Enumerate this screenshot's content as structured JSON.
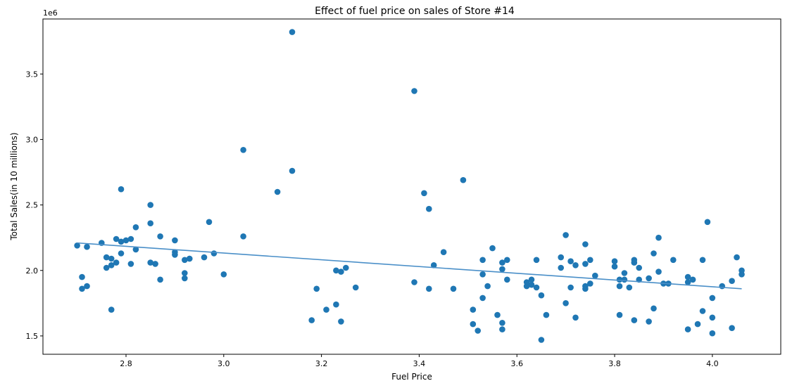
{
  "chart_data": {
    "type": "scatter",
    "title": "Effect of fuel price on sales of Store #14",
    "xlabel": "Fuel Price",
    "ylabel": "Total Sales(in 10 millions)",
    "y_offset_text": "1e6",
    "xlim": [
      2.63,
      4.14
    ],
    "ylim": [
      1.36,
      3.92
    ],
    "x_ticks": [
      {
        "value": 2.8,
        "label": "2.8"
      },
      {
        "value": 3.0,
        "label": "3.0"
      },
      {
        "value": 3.2,
        "label": "3.2"
      },
      {
        "value": 3.4,
        "label": "3.4"
      },
      {
        "value": 3.6,
        "label": "3.6"
      },
      {
        "value": 3.8,
        "label": "3.8"
      },
      {
        "value": 4.0,
        "label": "4.0"
      }
    ],
    "y_ticks": [
      {
        "value": 1.5,
        "label": "1.5"
      },
      {
        "value": 2.0,
        "label": "2.0"
      },
      {
        "value": 2.5,
        "label": "2.5"
      },
      {
        "value": 3.0,
        "label": "3.0"
      },
      {
        "value": 3.5,
        "label": "3.5"
      }
    ],
    "grid": false,
    "colors": {
      "points": "#1f77b4",
      "trend": "#4a8fc8"
    },
    "trend_line": {
      "x": [
        2.7,
        4.06
      ],
      "y": [
        2.21,
        1.86
      ]
    },
    "points": [
      {
        "x": 2.7,
        "y": 2.19
      },
      {
        "x": 2.71,
        "y": 1.95
      },
      {
        "x": 2.71,
        "y": 1.86
      },
      {
        "x": 2.72,
        "y": 1.88
      },
      {
        "x": 2.72,
        "y": 2.18
      },
      {
        "x": 2.75,
        "y": 2.21
      },
      {
        "x": 2.76,
        "y": 2.1
      },
      {
        "x": 2.76,
        "y": 2.02
      },
      {
        "x": 2.77,
        "y": 2.09
      },
      {
        "x": 2.77,
        "y": 1.7
      },
      {
        "x": 2.77,
        "y": 2.04
      },
      {
        "x": 2.78,
        "y": 2.24
      },
      {
        "x": 2.78,
        "y": 2.06
      },
      {
        "x": 2.79,
        "y": 2.22
      },
      {
        "x": 2.79,
        "y": 2.13
      },
      {
        "x": 2.79,
        "y": 2.62
      },
      {
        "x": 2.8,
        "y": 2.23
      },
      {
        "x": 2.81,
        "y": 2.05
      },
      {
        "x": 2.81,
        "y": 2.24
      },
      {
        "x": 2.82,
        "y": 2.33
      },
      {
        "x": 2.82,
        "y": 2.16
      },
      {
        "x": 2.85,
        "y": 2.06
      },
      {
        "x": 2.85,
        "y": 2.36
      },
      {
        "x": 2.85,
        "y": 2.5
      },
      {
        "x": 2.86,
        "y": 2.05
      },
      {
        "x": 2.87,
        "y": 1.93
      },
      {
        "x": 2.87,
        "y": 2.26
      },
      {
        "x": 2.9,
        "y": 2.23
      },
      {
        "x": 2.9,
        "y": 2.14
      },
      {
        "x": 2.9,
        "y": 2.12
      },
      {
        "x": 2.92,
        "y": 2.08
      },
      {
        "x": 2.92,
        "y": 1.94
      },
      {
        "x": 2.92,
        "y": 1.98
      },
      {
        "x": 2.93,
        "y": 2.09
      },
      {
        "x": 2.93,
        "y": 2.09
      },
      {
        "x": 2.96,
        "y": 2.1
      },
      {
        "x": 2.97,
        "y": 2.37
      },
      {
        "x": 2.98,
        "y": 2.13
      },
      {
        "x": 3.0,
        "y": 1.97
      },
      {
        "x": 3.04,
        "y": 2.92
      },
      {
        "x": 3.04,
        "y": 2.26
      },
      {
        "x": 3.11,
        "y": 2.6
      },
      {
        "x": 3.14,
        "y": 3.82
      },
      {
        "x": 3.14,
        "y": 2.76
      },
      {
        "x": 3.18,
        "y": 1.62
      },
      {
        "x": 3.19,
        "y": 1.86
      },
      {
        "x": 3.21,
        "y": 1.7
      },
      {
        "x": 3.23,
        "y": 1.74
      },
      {
        "x": 3.23,
        "y": 2.0
      },
      {
        "x": 3.24,
        "y": 1.61
      },
      {
        "x": 3.24,
        "y": 1.99
      },
      {
        "x": 3.25,
        "y": 2.02
      },
      {
        "x": 3.27,
        "y": 1.87
      },
      {
        "x": 3.39,
        "y": 3.37
      },
      {
        "x": 3.39,
        "y": 1.91
      },
      {
        "x": 3.41,
        "y": 2.59
      },
      {
        "x": 3.42,
        "y": 2.47
      },
      {
        "x": 3.42,
        "y": 1.86
      },
      {
        "x": 3.43,
        "y": 2.04
      },
      {
        "x": 3.45,
        "y": 2.14
      },
      {
        "x": 3.47,
        "y": 1.86
      },
      {
        "x": 3.49,
        "y": 2.69
      },
      {
        "x": 3.51,
        "y": 1.59
      },
      {
        "x": 3.51,
        "y": 1.7
      },
      {
        "x": 3.52,
        "y": 1.54
      },
      {
        "x": 3.53,
        "y": 2.08
      },
      {
        "x": 3.53,
        "y": 1.97
      },
      {
        "x": 3.53,
        "y": 1.79
      },
      {
        "x": 3.54,
        "y": 1.88
      },
      {
        "x": 3.55,
        "y": 2.17
      },
      {
        "x": 3.56,
        "y": 1.66
      },
      {
        "x": 3.57,
        "y": 1.6
      },
      {
        "x": 3.57,
        "y": 1.55
      },
      {
        "x": 3.57,
        "y": 2.06
      },
      {
        "x": 3.57,
        "y": 2.01
      },
      {
        "x": 3.58,
        "y": 2.08
      },
      {
        "x": 3.58,
        "y": 1.93
      },
      {
        "x": 3.62,
        "y": 1.88
      },
      {
        "x": 3.62,
        "y": 1.91
      },
      {
        "x": 3.63,
        "y": 1.89
      },
      {
        "x": 3.63,
        "y": 1.93
      },
      {
        "x": 3.64,
        "y": 2.08
      },
      {
        "x": 3.64,
        "y": 1.87
      },
      {
        "x": 3.65,
        "y": 1.81
      },
      {
        "x": 3.65,
        "y": 1.47
      },
      {
        "x": 3.66,
        "y": 1.66
      },
      {
        "x": 3.69,
        "y": 2.1
      },
      {
        "x": 3.69,
        "y": 2.02
      },
      {
        "x": 3.7,
        "y": 2.27
      },
      {
        "x": 3.7,
        "y": 1.75
      },
      {
        "x": 3.71,
        "y": 2.07
      },
      {
        "x": 3.71,
        "y": 1.87
      },
      {
        "x": 3.72,
        "y": 2.04
      },
      {
        "x": 3.72,
        "y": 1.64
      },
      {
        "x": 3.74,
        "y": 2.2
      },
      {
        "x": 3.74,
        "y": 1.88
      },
      {
        "x": 3.74,
        "y": 2.05
      },
      {
        "x": 3.74,
        "y": 1.86
      },
      {
        "x": 3.75,
        "y": 2.08
      },
      {
        "x": 3.75,
        "y": 1.9
      },
      {
        "x": 3.76,
        "y": 1.96
      },
      {
        "x": 3.8,
        "y": 2.03
      },
      {
        "x": 3.8,
        "y": 2.07
      },
      {
        "x": 3.81,
        "y": 1.66
      },
      {
        "x": 3.81,
        "y": 1.88
      },
      {
        "x": 3.81,
        "y": 1.93
      },
      {
        "x": 3.82,
        "y": 1.93
      },
      {
        "x": 3.82,
        "y": 1.98
      },
      {
        "x": 3.83,
        "y": 1.87
      },
      {
        "x": 3.84,
        "y": 1.62
      },
      {
        "x": 3.84,
        "y": 2.08
      },
      {
        "x": 3.84,
        "y": 2.06
      },
      {
        "x": 3.85,
        "y": 2.02
      },
      {
        "x": 3.85,
        "y": 1.93
      },
      {
        "x": 3.87,
        "y": 1.94
      },
      {
        "x": 3.87,
        "y": 1.61
      },
      {
        "x": 3.88,
        "y": 2.13
      },
      {
        "x": 3.88,
        "y": 1.71
      },
      {
        "x": 3.89,
        "y": 1.99
      },
      {
        "x": 3.89,
        "y": 2.25
      },
      {
        "x": 3.9,
        "y": 1.9
      },
      {
        "x": 3.91,
        "y": 1.9
      },
      {
        "x": 3.92,
        "y": 2.08
      },
      {
        "x": 3.95,
        "y": 1.55
      },
      {
        "x": 3.95,
        "y": 1.95
      },
      {
        "x": 3.95,
        "y": 1.91
      },
      {
        "x": 3.96,
        "y": 1.93
      },
      {
        "x": 3.97,
        "y": 1.59
      },
      {
        "x": 3.98,
        "y": 2.08
      },
      {
        "x": 3.98,
        "y": 1.69
      },
      {
        "x": 3.99,
        "y": 2.37
      },
      {
        "x": 4.0,
        "y": 1.52
      },
      {
        "x": 4.0,
        "y": 1.64
      },
      {
        "x": 4.0,
        "y": 1.79
      },
      {
        "x": 4.02,
        "y": 1.88
      },
      {
        "x": 4.04,
        "y": 1.56
      },
      {
        "x": 4.04,
        "y": 1.92
      },
      {
        "x": 4.05,
        "y": 2.1
      },
      {
        "x": 4.06,
        "y": 1.97
      },
      {
        "x": 4.06,
        "y": 2.0
      }
    ]
  }
}
